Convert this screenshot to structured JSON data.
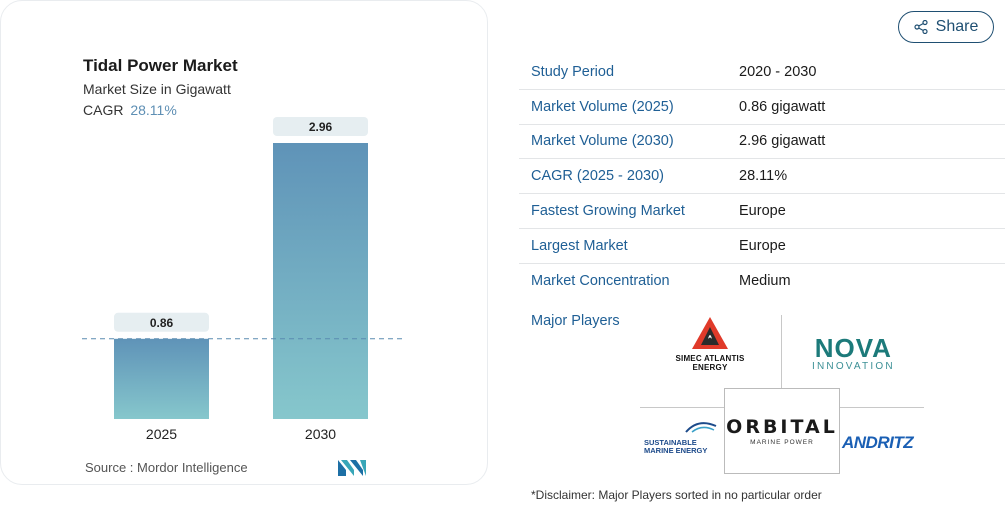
{
  "chart": {
    "title": "Tidal Power Market",
    "subtitle": "Market Size in Gigawatt",
    "cagr_label": "CAGR",
    "cagr_value": "28.11%",
    "source": "Source :  Mordor Intelligence",
    "logo": "MI"
  },
  "chart_data": {
    "type": "bar",
    "title": "Tidal Power Market",
    "subtitle": "Market Size in Gigawatt",
    "categories": [
      "2025",
      "2030"
    ],
    "values": [
      0.86,
      2.96
    ],
    "data_labels": [
      "0.86",
      "2.96"
    ],
    "xlabel": "",
    "ylabel": "",
    "ylim": [
      0,
      2.96
    ],
    "grid": false,
    "reference_line": 0.86,
    "colors": {
      "bar_top": "#5f93b8",
      "bar_bottom": "#86c7cc",
      "label_bg": "#e6eef1",
      "ref_line": "#5a8bb0"
    }
  },
  "share": {
    "label": "Share",
    "icon": "share-icon"
  },
  "table": {
    "rows": [
      {
        "label": "Study Period",
        "value": "2020 - 2030"
      },
      {
        "label": "Market Volume (2025)",
        "value": "0.86 gigawatt"
      },
      {
        "label": "Market Volume (2030)",
        "value": "2.96 gigawatt"
      },
      {
        "label": "CAGR (2025 - 2030)",
        "value": "28.11%"
      },
      {
        "label": "Fastest Growing Market",
        "value": "Europe"
      },
      {
        "label": "Largest Market",
        "value": "Europe"
      },
      {
        "label": "Market Concentration",
        "value": "Medium"
      }
    ]
  },
  "players": {
    "label": "Major Players",
    "simec": "SIMEC ATLANTIS ENERGY",
    "nova_main": "NOVA",
    "nova_sub": "INNOVATION",
    "orbital_main": "ORBITAL",
    "orbital_sub": "MARINE POWER",
    "sustainable": "SUSTAINABLE MARINE ENERGY",
    "andritz": "ANDRITZ"
  },
  "disclaimer": "*Disclaimer: Major Players sorted in no particular order"
}
